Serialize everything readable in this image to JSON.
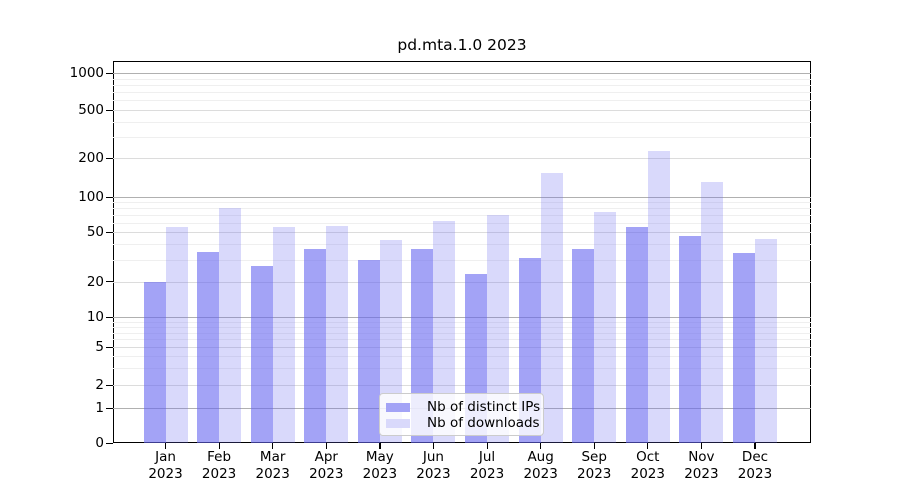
{
  "chart_data": {
    "type": "bar",
    "title": "pd.mta.1.0 2023",
    "categories": [
      "Jan",
      "Feb",
      "Mar",
      "Apr",
      "May",
      "Jun",
      "Jul",
      "Aug",
      "Sep",
      "Oct",
      "Nov",
      "Dec"
    ],
    "year_label": "2023",
    "series": [
      {
        "name": "Nb of distinct IPs",
        "values": [
          20,
          35,
          27,
          37,
          30,
          37,
          23,
          31,
          37,
          55,
          47,
          34
        ],
        "color": "rgba(102,102,240,0.6)",
        "swatch_color": "#a3a3f6"
      },
      {
        "name": "Nb of downloads",
        "values": [
          55,
          80,
          56,
          57,
          43,
          62,
          70,
          155,
          75,
          230,
          130,
          44
        ],
        "color": "rgba(102,102,240,0.25)",
        "swatch_color": "#d9d9fb"
      }
    ],
    "xlabel": "",
    "ylabel": "",
    "y_scale": "log-like (0,1 linear segment then logarithmic)",
    "y_ticks": [
      0,
      1,
      2,
      5,
      10,
      20,
      50,
      100,
      200,
      500,
      1000
    ],
    "y_major_grid_ticks": [
      1,
      10,
      100,
      1000
    ],
    "y_minor_grid_ticks": [
      3,
      4,
      6,
      7,
      8,
      9,
      30,
      40,
      60,
      70,
      80,
      90,
      300,
      400,
      600,
      700,
      800,
      900
    ],
    "ylim": [
      0,
      1250
    ],
    "grid": true,
    "legend_position": "lower center inside plot",
    "colors": {
      "major_grid": "#b0b0b0",
      "labeled_grid": "#dcdcdc",
      "minor_grid": "#efefef",
      "axis": "#000000",
      "background": "#ffffff"
    }
  }
}
